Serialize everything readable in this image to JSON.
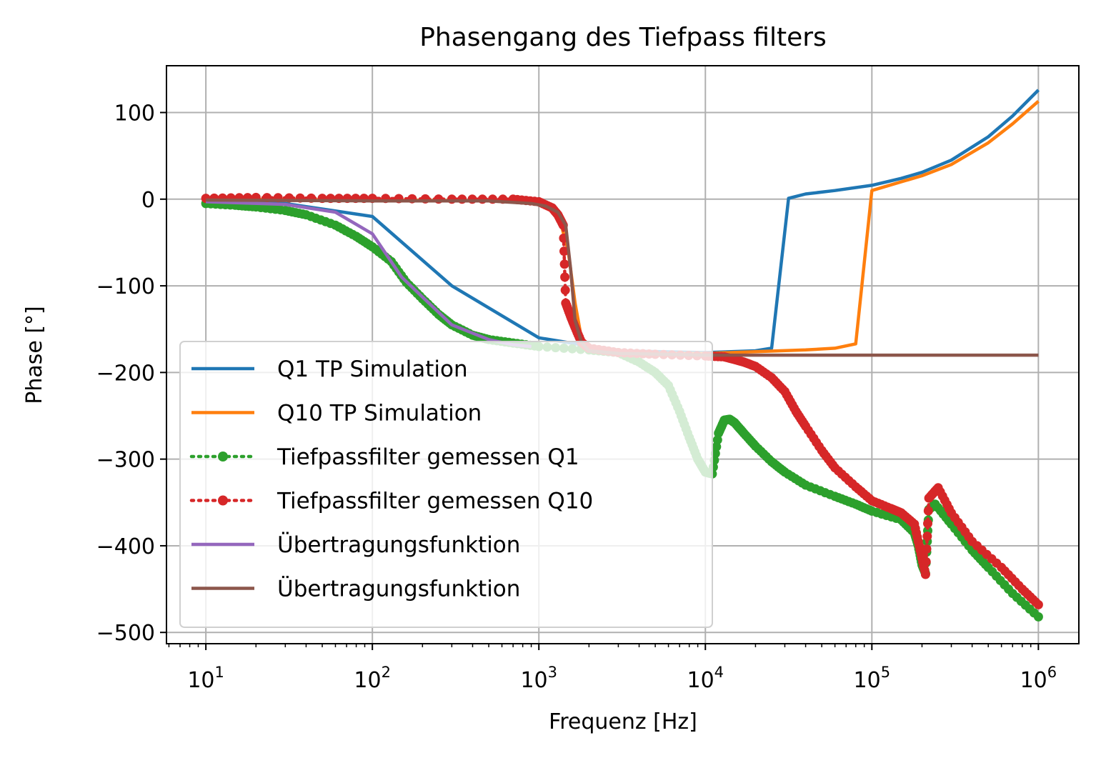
{
  "chart_data": {
    "type": "line",
    "title": "Phasengang des Tiefpass filters",
    "xlabel": "Frequenz [Hz]",
    "ylabel": "Phase [°]",
    "xscale": "log",
    "xlim": [
      5.8,
      1750000
    ],
    "ylim": [
      -513,
      154
    ],
    "grid": true,
    "legend_position": "lower left",
    "x_ticks": [
      {
        "base": "10",
        "exp": "1",
        "value": 10
      },
      {
        "base": "10",
        "exp": "2",
        "value": 100
      },
      {
        "base": "10",
        "exp": "3",
        "value": 1000
      },
      {
        "base": "10",
        "exp": "4",
        "value": 10000
      },
      {
        "base": "10",
        "exp": "5",
        "value": 100000
      },
      {
        "base": "10",
        "exp": "6",
        "value": 1000000
      }
    ],
    "y_ticks": [
      {
        "label": "100",
        "value": 100
      },
      {
        "label": "0",
        "value": 0
      },
      {
        "label": "−100",
        "value": -100
      },
      {
        "label": "−200",
        "value": -200
      },
      {
        "label": "−300",
        "value": -300
      },
      {
        "label": "−400",
        "value": -400
      },
      {
        "label": "−500",
        "value": -500
      }
    ],
    "series": [
      {
        "name": "Q1 TP Simulation",
        "color": "#1f77b4",
        "style": "line",
        "points": [
          [
            10,
            -3
          ],
          [
            30,
            -5
          ],
          [
            100,
            -20
          ],
          [
            300,
            -100
          ],
          [
            1000,
            -160
          ],
          [
            3000,
            -175
          ],
          [
            10000,
            -177
          ],
          [
            20000,
            -175
          ],
          [
            25000,
            -172
          ],
          [
            31600,
            1
          ],
          [
            40000,
            6
          ],
          [
            60000,
            10
          ],
          [
            100000,
            16
          ],
          [
            150000,
            24
          ],
          [
            200000,
            31
          ],
          [
            300000,
            45
          ],
          [
            500000,
            72
          ],
          [
            700000,
            96
          ],
          [
            1000000,
            126
          ]
        ]
      },
      {
        "name": "Q10 TP Simulation",
        "color": "#ff7f0e",
        "style": "line",
        "points": [
          [
            10,
            0
          ],
          [
            100,
            -1
          ],
          [
            500,
            -2
          ],
          [
            1000,
            -4
          ],
          [
            1300,
            -15
          ],
          [
            1500,
            -60
          ],
          [
            1650,
            -120
          ],
          [
            1800,
            -160
          ],
          [
            2000,
            -173
          ],
          [
            3000,
            -178
          ],
          [
            10000,
            -178
          ],
          [
            20000,
            -176
          ],
          [
            40000,
            -174
          ],
          [
            60000,
            -172
          ],
          [
            80000,
            -167
          ],
          [
            100000,
            10
          ],
          [
            150000,
            20
          ],
          [
            200000,
            27
          ],
          [
            300000,
            40
          ],
          [
            500000,
            65
          ],
          [
            700000,
            87
          ],
          [
            1000000,
            113
          ]
        ]
      },
      {
        "name": "Tiefpassfilter gemessen Q1",
        "color": "#2ca02c",
        "style": "dotted-markers",
        "points": [
          [
            10,
            -5
          ],
          [
            15,
            -7
          ],
          [
            20,
            -9
          ],
          [
            30,
            -13
          ],
          [
            40,
            -18
          ],
          [
            60,
            -30
          ],
          [
            80,
            -43
          ],
          [
            100,
            -55
          ],
          [
            130,
            -72
          ],
          [
            160,
            -96
          ],
          [
            200,
            -115
          ],
          [
            250,
            -133
          ],
          [
            300,
            -145
          ],
          [
            400,
            -157
          ],
          [
            500,
            -162
          ],
          [
            700,
            -166
          ],
          [
            1000,
            -170
          ],
          [
            2000,
            -174
          ],
          [
            3000,
            -177
          ],
          [
            4000,
            -188
          ],
          [
            5000,
            -200
          ],
          [
            6000,
            -215
          ],
          [
            7000,
            -245
          ],
          [
            8000,
            -275
          ],
          [
            9000,
            -300
          ],
          [
            10000,
            -315
          ],
          [
            11000,
            -317
          ],
          [
            12000,
            -270
          ],
          [
            13000,
            -255
          ],
          [
            14000,
            -254
          ],
          [
            15000,
            -258
          ],
          [
            17000,
            -270
          ],
          [
            20000,
            -285
          ],
          [
            25000,
            -303
          ],
          [
            30000,
            -315
          ],
          [
            40000,
            -330
          ],
          [
            60000,
            -343
          ],
          [
            80000,
            -352
          ],
          [
            100000,
            -360
          ],
          [
            150000,
            -370
          ],
          [
            180000,
            -385
          ],
          [
            190000,
            -400
          ],
          [
            200000,
            -422
          ],
          [
            210000,
            -432
          ],
          [
            220000,
            -358
          ],
          [
            240000,
            -352
          ],
          [
            300000,
            -375
          ],
          [
            400000,
            -405
          ],
          [
            500000,
            -425
          ],
          [
            700000,
            -455
          ],
          [
            1000000,
            -482
          ]
        ]
      },
      {
        "name": "Tiefpassfilter gemessen Q10",
        "color": "#d62728",
        "style": "dotted-markers",
        "points": [
          [
            10,
            1
          ],
          [
            20,
            2
          ],
          [
            50,
            1
          ],
          [
            100,
            1
          ],
          [
            300,
            0
          ],
          [
            700,
            0
          ],
          [
            1000,
            -3
          ],
          [
            1200,
            -10
          ],
          [
            1300,
            -18
          ],
          [
            1400,
            -30
          ],
          [
            1450,
            -120
          ],
          [
            1550,
            -135
          ],
          [
            1650,
            -148
          ],
          [
            1800,
            -165
          ],
          [
            2000,
            -172
          ],
          [
            3000,
            -177
          ],
          [
            5000,
            -179
          ],
          [
            10000,
            -181
          ],
          [
            13000,
            -182
          ],
          [
            15000,
            -185
          ],
          [
            17000,
            -188
          ],
          [
            20000,
            -193
          ],
          [
            25000,
            -206
          ],
          [
            30000,
            -222
          ],
          [
            35000,
            -245
          ],
          [
            40000,
            -262
          ],
          [
            50000,
            -290
          ],
          [
            60000,
            -310
          ],
          [
            80000,
            -332
          ],
          [
            100000,
            -348
          ],
          [
            130000,
            -357
          ],
          [
            150000,
            -362
          ],
          [
            180000,
            -375
          ],
          [
            195000,
            -405
          ],
          [
            210000,
            -433
          ],
          [
            220000,
            -345
          ],
          [
            250000,
            -333
          ],
          [
            300000,
            -362
          ],
          [
            400000,
            -395
          ],
          [
            600000,
            -425
          ],
          [
            800000,
            -450
          ],
          [
            1000000,
            -468
          ]
        ]
      },
      {
        "name": "Übertragungsfunktion",
        "color": "#9467bd",
        "style": "line",
        "points": [
          [
            10,
            -3
          ],
          [
            30,
            -6
          ],
          [
            60,
            -15
          ],
          [
            100,
            -40
          ],
          [
            150,
            -90
          ],
          [
            200,
            -113
          ],
          [
            300,
            -145
          ],
          [
            500,
            -162
          ],
          [
            700,
            -168
          ],
          [
            900,
            -170
          ]
        ]
      },
      {
        "name": "Übertragungsfunktion",
        "color": "#8c564b",
        "style": "line",
        "points": [
          [
            10,
            -1
          ],
          [
            100,
            -2
          ],
          [
            500,
            -2
          ],
          [
            900,
            -5
          ],
          [
            1100,
            -8
          ],
          [
            1300,
            -15
          ],
          [
            1450,
            -30
          ],
          [
            1550,
            -80
          ],
          [
            1650,
            -140
          ],
          [
            1800,
            -165
          ],
          [
            2000,
            -175
          ],
          [
            3000,
            -178
          ],
          [
            10000,
            -180
          ],
          [
            100000,
            -180
          ],
          [
            1000000,
            -180
          ]
        ]
      }
    ]
  }
}
